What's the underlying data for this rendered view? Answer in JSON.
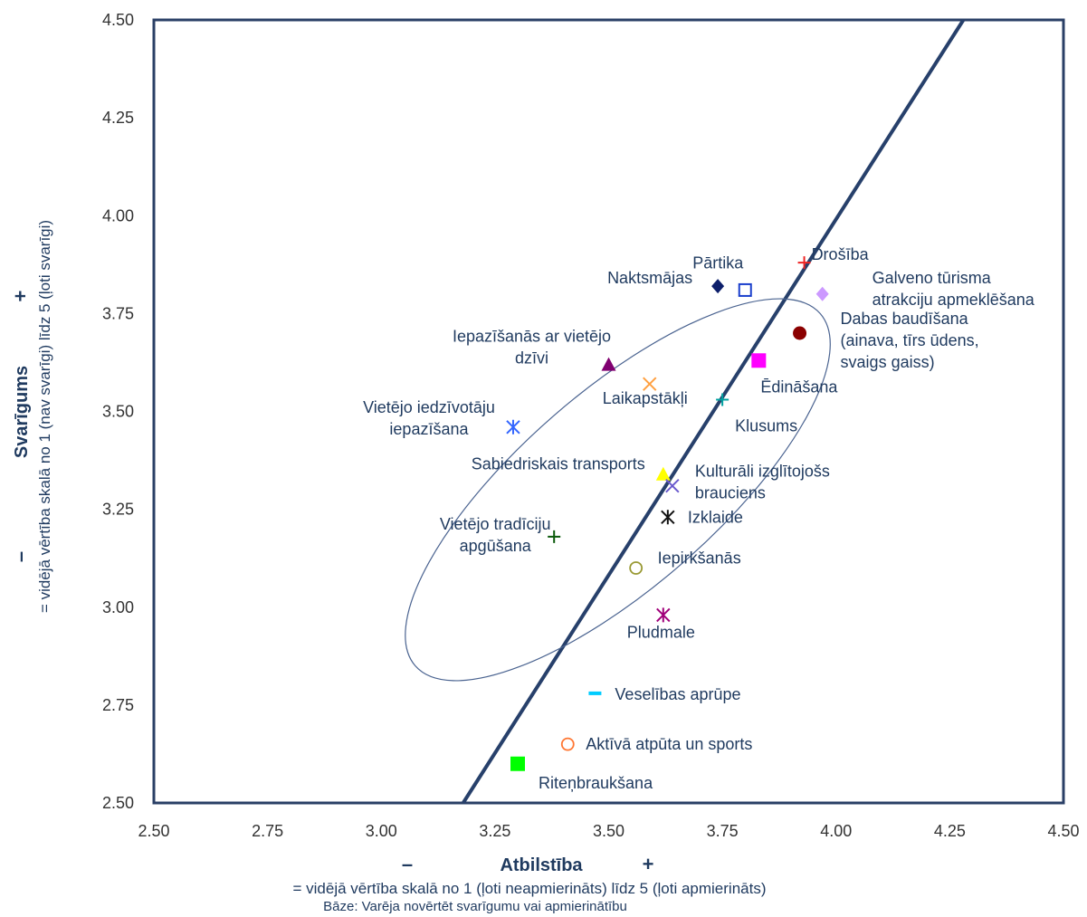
{
  "chart_data": {
    "type": "scatter",
    "xlim": [
      2.5,
      4.5
    ],
    "ylim": [
      2.5,
      4.5
    ],
    "x_ticks": [
      "2.50",
      "2.75",
      "3.00",
      "3.25",
      "3.50",
      "3.75",
      "4.00",
      "4.25",
      "4.50"
    ],
    "y_ticks": [
      "2.50",
      "2.75",
      "3.00",
      "3.25",
      "3.50",
      "3.75",
      "4.00",
      "4.25",
      "4.50"
    ],
    "xlabel": "Atbilstība",
    "x_minus": "–",
    "x_plus": "+",
    "x_description": "= vidējā vērtība skalā no 1 (ļoti neapmierināts) līdz 5 (ļoti apmierināts)",
    "ylabel": "Svarīgums",
    "y_minus": "–",
    "y_plus": "+",
    "y_description": "= vidējā vērtība skalā no 1 (nav svarīgi) līdz 5 (ļoti svarīgi)",
    "base_note": "Bāze: Varēja novērtēt svarīgumu vai apmierinātību",
    "grid": false,
    "legend": "none",
    "diagonal_line": {
      "x": [
        3.18,
        4.28
      ],
      "y": [
        2.5,
        4.5
      ]
    },
    "ellipse": {
      "cx": 3.52,
      "cy": 3.3,
      "rx": 0.59,
      "ry": 0.25,
      "rotation": 41
    },
    "points": [
      {
        "label": [
          "Drošība"
        ],
        "x": 3.93,
        "y": 3.88,
        "marker": "plus",
        "color": "#ee2222"
      },
      {
        "label": [
          "Pārtika"
        ],
        "x": 3.8,
        "y": 3.81,
        "marker": "square-open",
        "color": "#1a3fcc"
      },
      {
        "label": [
          "Naktsmājas"
        ],
        "x": 3.74,
        "y": 3.82,
        "marker": "diamond",
        "color": "#0d1f6b"
      },
      {
        "label": [
          "Galveno tūrisma",
          "atrakciju apmeklēšana"
        ],
        "x": 3.97,
        "y": 3.8,
        "marker": "diamond",
        "color": "#cc99ff"
      },
      {
        "label": [
          "Dabas baudīšana",
          "(ainava, tīrs ūdens,",
          "svaigs gaiss)"
        ],
        "x": 3.92,
        "y": 3.7,
        "marker": "circle",
        "color": "#8b0000"
      },
      {
        "label": [
          "Iepazīšanās ar vietējo",
          "dzīvi"
        ],
        "x": 3.5,
        "y": 3.62,
        "marker": "triangle",
        "color": "#800070"
      },
      {
        "label": [
          "Ēdināšana"
        ],
        "x": 3.83,
        "y": 3.63,
        "marker": "square",
        "color": "#ff00ff"
      },
      {
        "label": [
          "Laikapstākļi"
        ],
        "x": 3.59,
        "y": 3.57,
        "marker": "x",
        "color": "#ffa040"
      },
      {
        "label": [
          "Klusums"
        ],
        "x": 3.75,
        "y": 3.53,
        "marker": "plus",
        "color": "#00a0a0"
      },
      {
        "label": [
          "Vietējo iedzīvotāju",
          "iepazīšana"
        ],
        "x": 3.29,
        "y": 3.46,
        "marker": "asterisk",
        "color": "#3366ff"
      },
      {
        "label": [
          "Sabiedriskais transports"
        ],
        "x": 3.62,
        "y": 3.34,
        "marker": "triangle",
        "color": "#ffff00"
      },
      {
        "label": [
          "Kulturāli izglītojošs",
          "brauciens"
        ],
        "x": 3.64,
        "y": 3.31,
        "marker": "x",
        "color": "#6a5acd"
      },
      {
        "label": [
          "Izklaide"
        ],
        "x": 3.63,
        "y": 3.23,
        "marker": "asterisk",
        "color": "#111111"
      },
      {
        "label": [
          "Vietējo tradīciju",
          "apgūšana"
        ],
        "x": 3.38,
        "y": 3.18,
        "marker": "plus",
        "color": "#0a5a0a"
      },
      {
        "label": [
          "Iepirkšanās"
        ],
        "x": 3.56,
        "y": 3.1,
        "marker": "circle-open",
        "color": "#999933"
      },
      {
        "label": [
          "Pludmale"
        ],
        "x": 3.62,
        "y": 2.98,
        "marker": "asterisk",
        "color": "#a0007a"
      },
      {
        "label": [
          "Veselības aprūpe"
        ],
        "x": 3.47,
        "y": 2.78,
        "marker": "dash",
        "color": "#00ccff"
      },
      {
        "label": [
          "Aktīvā atpūta un sports"
        ],
        "x": 3.41,
        "y": 2.65,
        "marker": "circle-open",
        "color": "#ff7733"
      },
      {
        "label": [
          "Riteņbraukšana"
        ],
        "x": 3.3,
        "y": 2.6,
        "marker": "square",
        "color": "#00ff00"
      }
    ]
  }
}
